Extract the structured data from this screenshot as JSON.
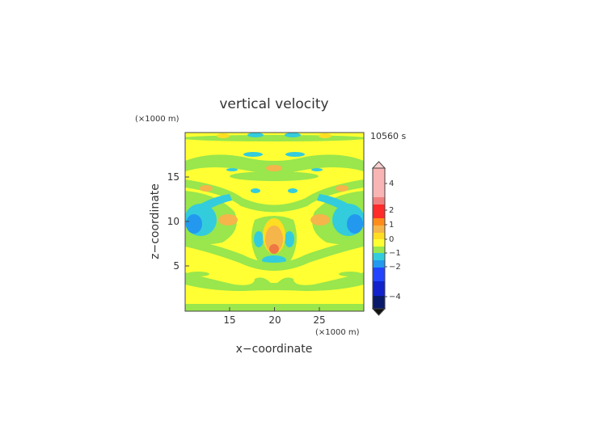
{
  "chart_data": {
    "type": "heatmap",
    "title": "vertical velocity",
    "time_label": "10560 s",
    "xlabel": "x−coordinate",
    "ylabel": "z−coordinate",
    "x_unit": "(×1000 m)",
    "y_unit": "(×1000 m)",
    "xlim": [
      10,
      30
    ],
    "ylim": [
      0,
      20
    ],
    "x_ticks": [
      "15",
      "20",
      "25"
    ],
    "y_ticks": [
      "5",
      "10",
      "15"
    ],
    "colorbar": {
      "tick_labels": [
        "4",
        "2",
        "1",
        "0",
        "−1",
        "−2",
        "−4"
      ]
    }
  }
}
